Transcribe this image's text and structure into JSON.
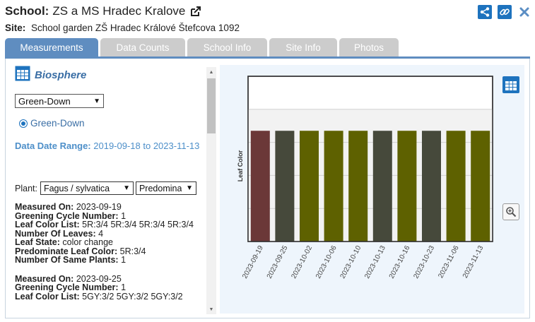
{
  "header": {
    "school_label": "School:",
    "school_name": "ZS a MS Hradec Kralove",
    "site_label": "Site:",
    "site_name": "School garden ZŠ Hradec Králové Štefcova 1092"
  },
  "icons": {
    "external_link": "external-link-icon",
    "share": "share-icon",
    "link": "link-icon",
    "close": "close-icon",
    "table": "table-icon",
    "zoom": "zoom-in-icon"
  },
  "colors": {
    "accent": "#1e73be",
    "tab_active": "#5f8dc0",
    "tab_inactive": "#cccccc",
    "chart_bg": "#eef5fc",
    "bar_red": "#6b3838",
    "bar_dark": "#46493b",
    "bar_olive": "#5e6100"
  },
  "tabs": [
    {
      "label": "Measurements",
      "active": true
    },
    {
      "label": "Data Counts",
      "active": false
    },
    {
      "label": "School Info",
      "active": false
    },
    {
      "label": "Site Info",
      "active": false
    },
    {
      "label": "Photos",
      "active": false
    }
  ],
  "left": {
    "title": "Biosphere",
    "measure_select": "Green-Down",
    "radio_label": "Green-Down",
    "date_range_label": "Data Date Range:",
    "date_range_value": "2019-09-18 to 2023-11-13",
    "plant_label": "Plant:",
    "plant_select": "Fagus / sylvatica",
    "predominant_select": "Predomina",
    "records": [
      {
        "measured_on_label": "Measured On:",
        "measured_on": "2023-09-19",
        "cycle_label": "Greening Cycle Number:",
        "cycle": "1",
        "color_list_label": "Leaf Color List:",
        "color_list": "5R:3/4 5R:3/4 5R:3/4 5R:3/4",
        "leaves_label": "Number Of Leaves:",
        "leaves": "4",
        "state_label": "Leaf State:",
        "state": "color change",
        "pred_label": "Predominate Leaf Color:",
        "pred": "5R:3/4",
        "same_label": "Number Of Same Plants:",
        "same": "1"
      },
      {
        "measured_on_label": "Measured On:",
        "measured_on": "2023-09-25",
        "cycle_label": "Greening Cycle Number:",
        "cycle": "1",
        "color_list_label": "Leaf Color List:",
        "color_list": "5GY:3/2 5GY:3/2 5GY:3/2"
      }
    ]
  },
  "chart_data": {
    "type": "bar",
    "ylabel": "Leaf Color",
    "categories": [
      "2023-09-19",
      "2023-09-25",
      "2023-10-02",
      "2023-10-06",
      "2023-10-10",
      "2023-10-13",
      "2023-10-16",
      "2023-10-23",
      "2023-11-06",
      "2023-11-13"
    ],
    "values": [
      0.67,
      0.67,
      0.67,
      0.67,
      0.67,
      0.67,
      0.67,
      0.67,
      0.67,
      0.67
    ],
    "bar_colors": [
      "#6b3838",
      "#46493b",
      "#5e6100",
      "#5e6100",
      "#5e6100",
      "#46493b",
      "#5e6100",
      "#46493b",
      "#5e6100",
      "#5e6100"
    ],
    "ylim": [
      0,
      1
    ],
    "grid": true
  }
}
